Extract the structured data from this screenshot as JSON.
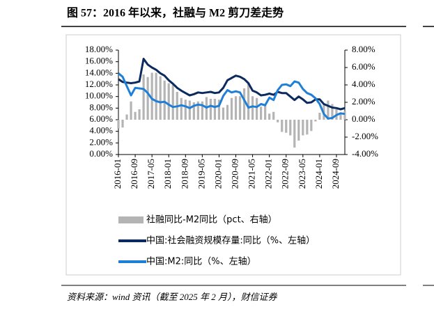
{
  "chart_data": {
    "type": "combo",
    "title": "图 57：2016 年以来，社融与 M2 剪刀差走势",
    "source": "资料来源：wind 资讯（截至 2025 年 2 月），财信证券",
    "categories": [
      "2016-01",
      null,
      null,
      null,
      "2016-09",
      null,
      null,
      null,
      "2017-05",
      null,
      null,
      null,
      "2018-01",
      null,
      null,
      null,
      "2018-09",
      null,
      null,
      null,
      "2019-05",
      null,
      null,
      null,
      "2020-01",
      null,
      null,
      null,
      "2020-09",
      null,
      null,
      null,
      "2021-05",
      null,
      null,
      null,
      "2022-01",
      null,
      null,
      null,
      "2022-09",
      null,
      null,
      null,
      "2023-05",
      null,
      null,
      null,
      "2024-01",
      null,
      null,
      null,
      "2024-09",
      null,
      null
    ],
    "ylim": [
      0,
      18
    ],
    "yticks": [
      {
        "value": 0,
        "label": "0.00%"
      },
      {
        "value": 2,
        "label": "2.00%"
      },
      {
        "value": 4,
        "label": "4.00%"
      },
      {
        "value": 6,
        "label": "6.00%"
      },
      {
        "value": 8,
        "label": "8.00%"
      },
      {
        "value": 10,
        "label": "10.00%"
      },
      {
        "value": 12,
        "label": "12.00%"
      },
      {
        "value": 14,
        "label": "14.00%"
      },
      {
        "value": 16,
        "label": "16.00%"
      },
      {
        "value": 18,
        "label": "18.00%"
      }
    ],
    "y2lim": [
      -4,
      8
    ],
    "y2ticks": [
      {
        "value": -4,
        "label": "-4.00%"
      },
      {
        "value": -2,
        "label": "-2.00%"
      },
      {
        "value": 0,
        "label": "0.00%"
      },
      {
        "value": 2,
        "label": "2.00%"
      },
      {
        "value": 4,
        "label": "4.00%"
      },
      {
        "value": 6,
        "label": "6.00%"
      },
      {
        "value": 8,
        "label": "8.00%"
      }
    ],
    "series": [
      {
        "name": "社融同比-M2同比（pct、右轴）",
        "type": "bar",
        "axis": "y2",
        "color": "#b4b4b4",
        "values": [
          -1.0,
          -0.9,
          0.6,
          2.1,
          0.9,
          1.2,
          5.2,
          4.9,
          5.4,
          5.4,
          5.0,
          4.5,
          4.2,
          4.0,
          3.2,
          2.5,
          2.3,
          2.2,
          2.0,
          2.1,
          2.1,
          2.6,
          2.4,
          2.4,
          2.3,
          1.4,
          1.7,
          2.5,
          2.7,
          2.7,
          3.6,
          4.2,
          2.7,
          2.5,
          1.5,
          1.8,
          0.7,
          0.9,
          -0.3,
          -1.4,
          -1.5,
          -1.8,
          -3.2,
          -2.4,
          -1.8,
          -1.7,
          -1.3,
          -0.2,
          0.8,
          1.7,
          2.2,
          1.8,
          1.2,
          0.7,
          1.0
        ]
      },
      {
        "name": "中国:社会融资规模存量:同比（%、左轴）",
        "type": "line",
        "color": "#0b2a5e",
        "values": [
          13.0,
          12.5,
          12.4,
          12.3,
          12.4,
          12.6,
          16.5,
          15.5,
          15.0,
          14.6,
          14.0,
          13.6,
          12.8,
          12.2,
          11.5,
          11.0,
          10.6,
          10.2,
          10.4,
          10.7,
          10.6,
          10.7,
          10.8,
          10.6,
          10.7,
          11.5,
          12.8,
          13.2,
          13.6,
          13.4,
          13.0,
          12.3,
          11.0,
          10.7,
          10.2,
          10.3,
          10.5,
          10.3,
          10.8,
          10.6,
          10.6,
          10.0,
          9.4,
          10.0,
          9.5,
          8.9,
          9.0,
          9.5,
          9.5,
          8.7,
          8.4,
          8.1,
          8.0,
          7.8,
          8.0
        ]
      },
      {
        "name": "中国:M2:同比（%、左轴）",
        "type": "line",
        "color": "#1f7fd6",
        "values": [
          14.0,
          13.4,
          11.8,
          10.2,
          11.5,
          11.4,
          11.3,
          10.6,
          9.6,
          9.2,
          9.0,
          9.1,
          8.6,
          8.2,
          8.3,
          8.5,
          8.3,
          8.0,
          8.4,
          8.6,
          8.5,
          8.1,
          8.4,
          8.2,
          8.4,
          10.1,
          11.1,
          10.7,
          10.9,
          10.7,
          9.4,
          8.1,
          8.3,
          8.2,
          8.7,
          8.5,
          9.8,
          9.4,
          11.1,
          12.0,
          12.1,
          11.8,
          12.6,
          12.4,
          11.3,
          10.6,
          10.3,
          9.7,
          8.7,
          7.0,
          6.2,
          6.3,
          6.8,
          7.1,
          7.0
        ]
      }
    ]
  }
}
